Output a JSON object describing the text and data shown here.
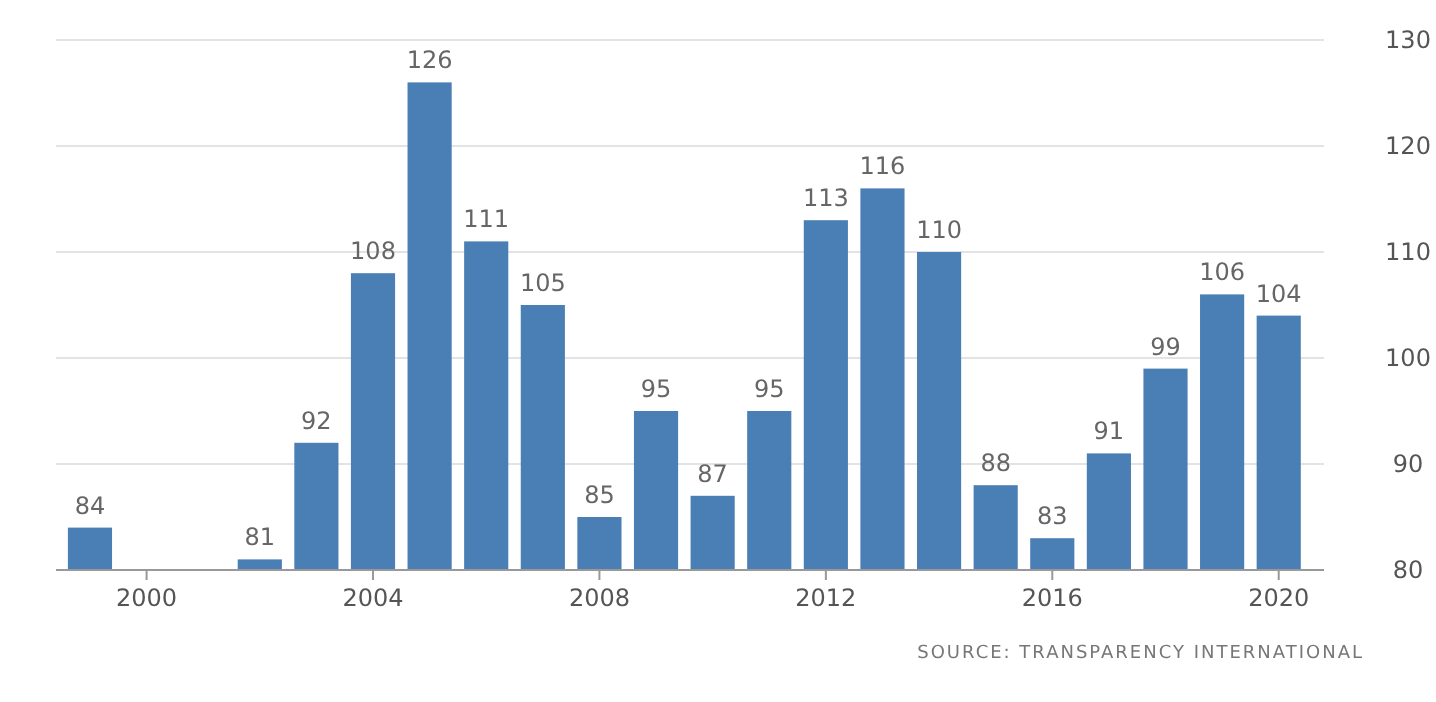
{
  "chart_data": {
    "type": "bar",
    "x": [
      1999,
      2002,
      2003,
      2004,
      2005,
      2006,
      2007,
      2008,
      2009,
      2010,
      2011,
      2012,
      2013,
      2014,
      2015,
      2016,
      2017,
      2018,
      2019,
      2020
    ],
    "values": [
      84,
      81,
      92,
      108,
      126,
      111,
      105,
      85,
      95,
      87,
      95,
      113,
      116,
      110,
      88,
      83,
      91,
      99,
      106,
      104
    ],
    "color": "#4a7fb5",
    "xlim": [
      1998.4,
      2020.8
    ],
    "xticks": [
      2000,
      2004,
      2008,
      2012,
      2016,
      2020
    ],
    "ylim": [
      80,
      130
    ],
    "yticks": [
      80,
      90,
      100,
      110,
      120,
      130
    ],
    "grid": "y",
    "data_labels": true,
    "annotations": [
      "SOURCE: TRANSPARENCY INTERNATIONAL"
    ]
  }
}
